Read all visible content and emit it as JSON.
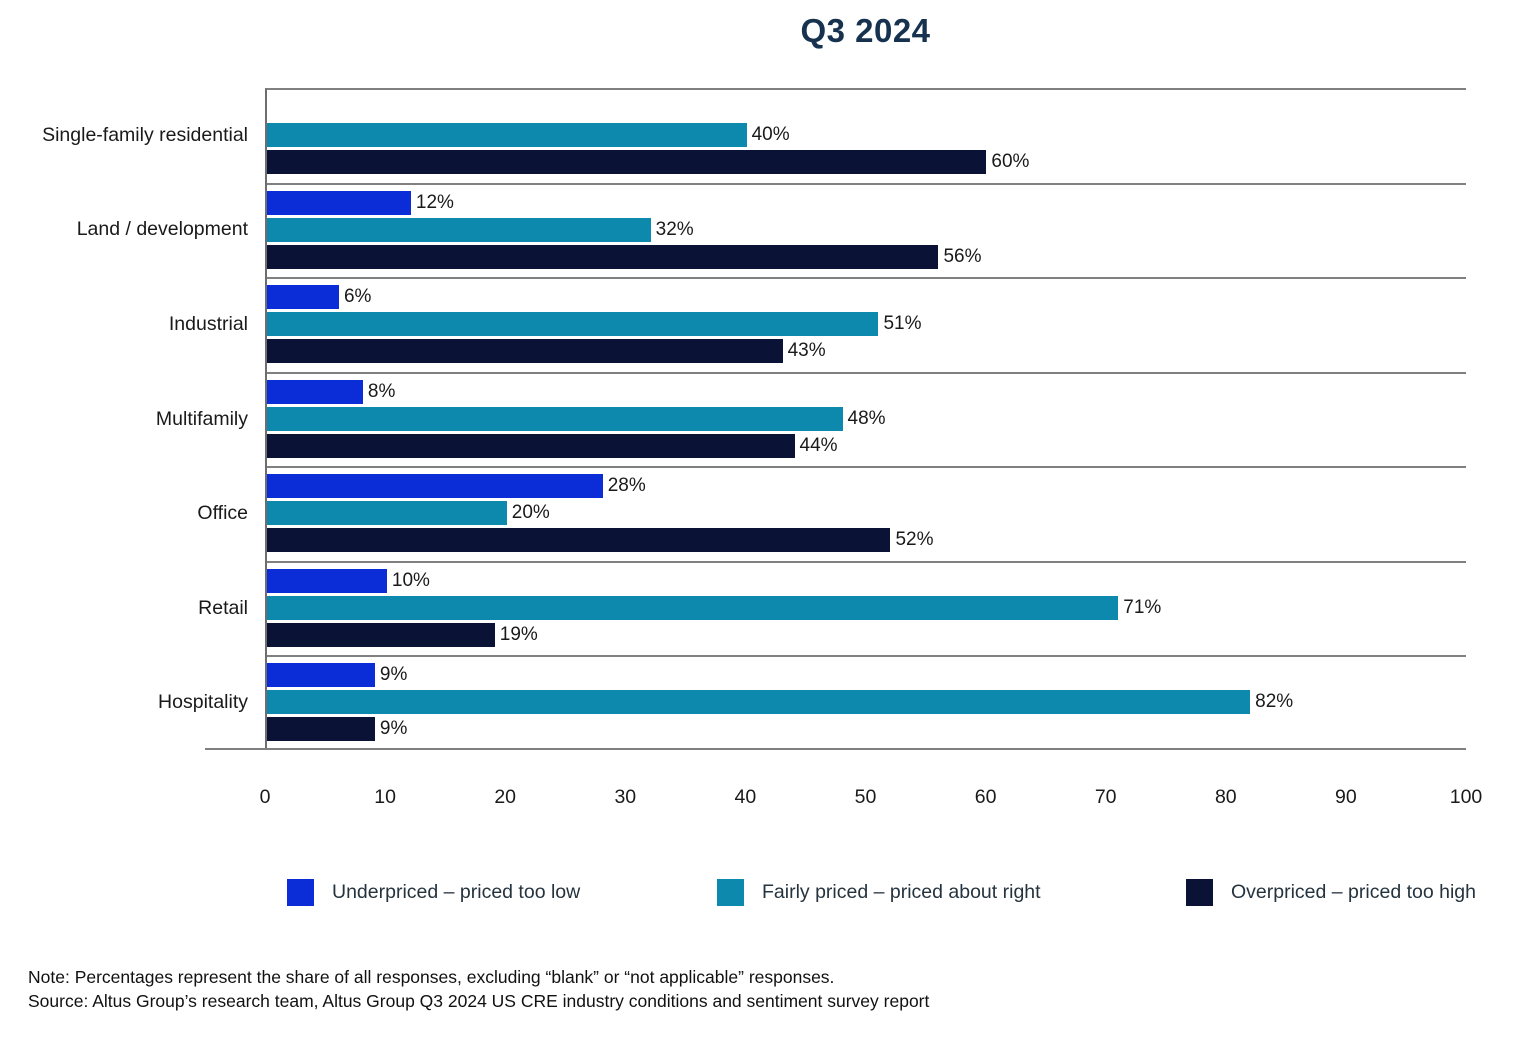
{
  "title": "Q3 2024",
  "chart_data": {
    "type": "bar",
    "orientation": "horizontal",
    "title": "Q3 2024",
    "categories": [
      "Single-family residential",
      "Land / development",
      "Industrial",
      "Multifamily",
      "Office",
      "Retail",
      "Hospitality"
    ],
    "series": [
      {
        "name": "Underpriced – priced too low",
        "color": "#0B2DD8",
        "values": [
          0,
          12,
          6,
          8,
          28,
          10,
          9
        ]
      },
      {
        "name": "Fairly priced – priced about right",
        "color": "#0E89AE",
        "values": [
          40,
          32,
          51,
          48,
          20,
          71,
          82
        ]
      },
      {
        "name": "Overpriced – priced too high",
        "color": "#0A1335",
        "values": [
          60,
          56,
          43,
          44,
          52,
          19,
          9
        ]
      }
    ],
    "value_suffix": "%",
    "xlim": [
      0,
      100
    ],
    "x_ticks": [
      0,
      10,
      20,
      30,
      40,
      50,
      60,
      70,
      80,
      90,
      100
    ],
    "grid": "horizontal-group-separators",
    "legend_position": "bottom"
  },
  "footer": {
    "note": "Note: Percentages represent the share of all responses, excluding “blank” or “not applicable” responses.",
    "source": "Source: Altus Group’s research team, Altus Group Q3 2024 US CRE industry conditions and sentiment survey report"
  },
  "colors": {
    "title_text": "#16324F",
    "axis_line": "#808080",
    "label_text": "#1a1a1a"
  }
}
